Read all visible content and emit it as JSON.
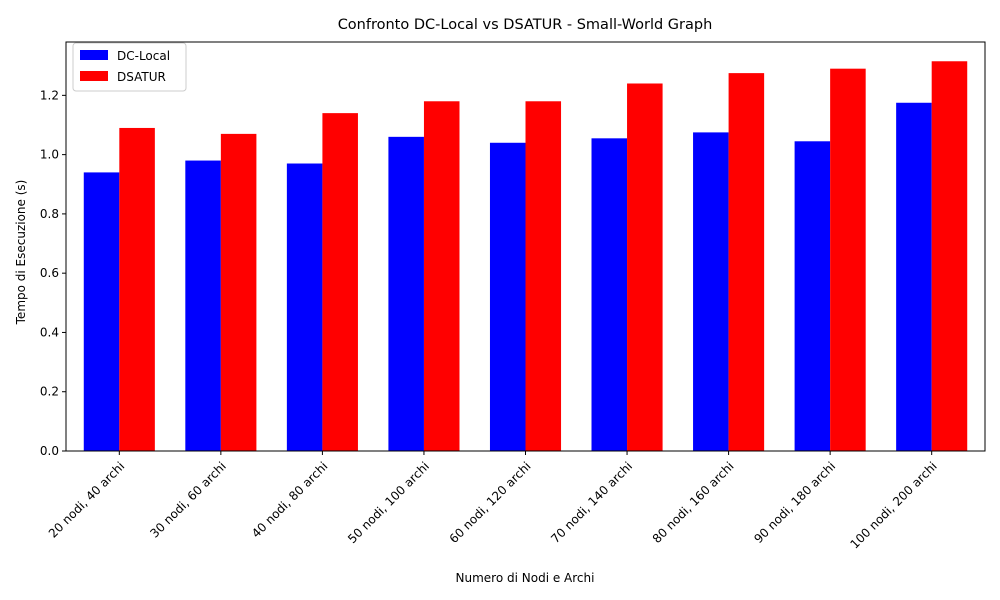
{
  "chart_data": {
    "type": "bar",
    "title": "Confronto DC-Local vs DSATUR - Small-World Graph",
    "xlabel": "Numero di Nodi e Archi",
    "ylabel": "Tempo di Esecuzione (s)",
    "categories": [
      "20 nodi, 40 archi",
      "30 nodi, 60 archi",
      "40 nodi, 80 archi",
      "50 nodi, 100 archi",
      "60 nodi, 120 archi",
      "70 nodi, 140 archi",
      "80 nodi, 160 archi",
      "90 nodi, 180 archi",
      "100 nodi, 200 archi"
    ],
    "series": [
      {
        "name": "DC-Local",
        "color": "#0000ff",
        "values": [
          0.94,
          0.98,
          0.97,
          1.06,
          1.04,
          1.055,
          1.075,
          1.045,
          1.175
        ]
      },
      {
        "name": "DSATUR",
        "color": "#ff0000",
        "values": [
          1.09,
          1.07,
          1.14,
          1.18,
          1.18,
          1.24,
          1.275,
          1.29,
          1.315
        ]
      }
    ],
    "yticks": [
      "0.0",
      "0.2",
      "0.4",
      "0.6",
      "0.8",
      "1.0",
      "1.2"
    ],
    "ylim": [
      0,
      1.38
    ],
    "grid": false,
    "legend": "top-left"
  }
}
